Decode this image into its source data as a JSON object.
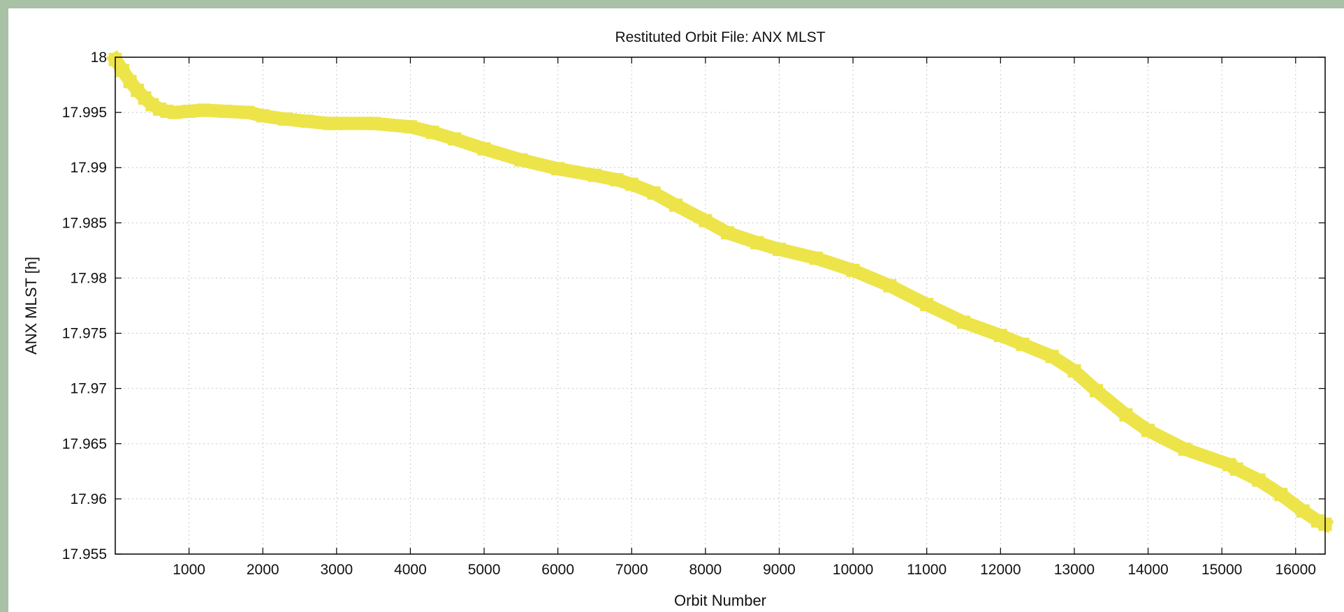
{
  "chart_data": {
    "type": "scatter",
    "title": "Restituted Orbit File: ANX MLST",
    "xlabel": "Orbit Number",
    "ylabel": "ANX MLST [h]",
    "xlim": [
      0,
      16400
    ],
    "ylim": [
      17.955,
      18
    ],
    "x_ticks": [
      1000,
      2000,
      3000,
      4000,
      5000,
      6000,
      7000,
      8000,
      9000,
      10000,
      11000,
      12000,
      13000,
      14000,
      15000,
      16000
    ],
    "y_ticks": [
      18,
      17.995,
      17.99,
      17.985,
      17.98,
      17.975,
      17.97,
      17.965,
      17.96,
      17.955
    ],
    "y_tick_labels": [
      "18",
      "17.995",
      "17.99",
      "17.985",
      "17.98",
      "17.975",
      "17.97",
      "17.965",
      "17.96",
      "17.955"
    ],
    "grid": true,
    "marker_color": "#ede44a",
    "series": [
      {
        "segments": [
          {
            "x": [
              0,
              100,
              200,
              300,
              400,
              500,
              600,
              700,
              800,
              1000,
              1200,
              1500,
              1800,
              2000,
              2300,
              2600,
              2900,
              3000,
              3500,
              4000,
              4300,
              4600,
              5000,
              5500,
              6000,
              6500,
              6800,
              7000,
              7300,
              7600,
              8000,
              8300,
              8700,
              9000,
              9500,
              10000,
              10500,
              11000,
              11500,
              12000,
              12300,
              12700,
              13000,
              13300,
              13700,
              14000,
              14500,
              15100
            ],
            "y": [
              17.9998,
              17.9988,
              17.9978,
              17.997,
              17.9963,
              17.9957,
              17.9953,
              17.9951,
              17.995,
              17.9951,
              17.9952,
              17.9951,
              17.995,
              17.9947,
              17.9944,
              17.9942,
              17.994,
              17.994,
              17.994,
              17.9937,
              17.9932,
              17.9926,
              17.9917,
              17.9907,
              17.9899,
              17.9893,
              17.9889,
              17.9885,
              17.9877,
              17.9866,
              17.9852,
              17.9841,
              17.9832,
              17.9826,
              17.9818,
              17.9807,
              17.9793,
              17.9776,
              17.976,
              17.9748,
              17.974,
              17.9729,
              17.9716,
              17.9698,
              17.9676,
              17.9662,
              17.9645,
              17.9631
            ]
          },
          {
            "x": [
              15200,
              15500,
              15800,
              16100,
              16300,
              16400
            ],
            "y": [
              17.9627,
              17.9617,
              17.9604,
              17.9589,
              17.958,
              17.9577
            ]
          }
        ]
      }
    ]
  }
}
